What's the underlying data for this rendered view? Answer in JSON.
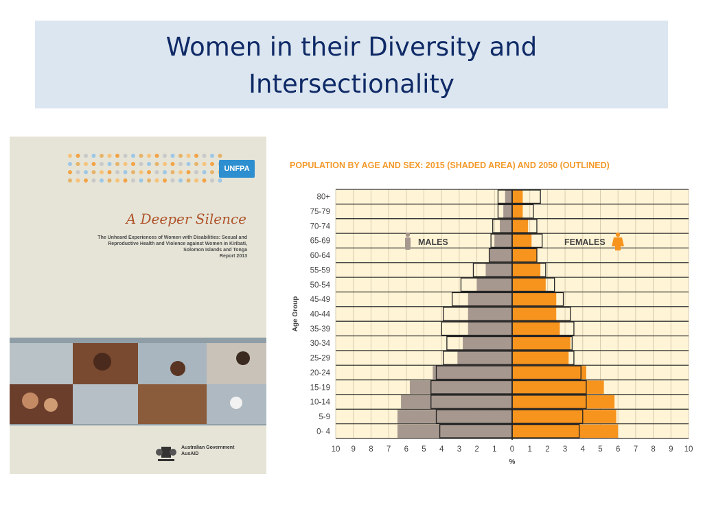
{
  "slide": {
    "title_line1": "Women in their Diversity and",
    "title_line2": "Intersectionality"
  },
  "cover": {
    "title": "A Deeper Silence",
    "brand_label": "UNFPA",
    "subtitle": "The Unheard Experiences of Women with Disabilities: Sexual and Reproductive Health and Violence against Women in Kiribati, Solomon Islands and Tonga",
    "subtitle_line2": "Kiribati, Solomon Islands and Tonga",
    "year": "Report 2013",
    "logo_text_line1": "Australian Government",
    "logo_text_line2": "AusAID"
  },
  "chart_data": {
    "type": "bar",
    "orientation": "horizontal",
    "title": "POPULATION BY AGE AND SEX: 2015 (SHADED AREA) AND 2050 (OUTLINED)",
    "xlabel": "%",
    "ylabel": "Age Group",
    "xlim": [
      -10,
      10
    ],
    "x_ticks": [
      "10",
      "9",
      "8",
      "7",
      "6",
      "5",
      "4",
      "3",
      "2",
      "1",
      "0",
      "1",
      "2",
      "3",
      "4",
      "5",
      "6",
      "7",
      "8",
      "9",
      "10"
    ],
    "categories": [
      "0- 4",
      "5-9",
      "10-14",
      "15-19",
      "20-24",
      "25-29",
      "30-34",
      "35-39",
      "40-44",
      "45-49",
      "50-54",
      "55-59",
      "60-64",
      "65-69",
      "70-74",
      "75-79",
      "80+"
    ],
    "male_label": "MALES",
    "female_label": "FEMALES",
    "series": [
      {
        "name": "Males 2015",
        "style": "shaded",
        "color": "#a7988f",
        "values": [
          6.5,
          6.5,
          6.3,
          5.8,
          4.5,
          3.1,
          2.8,
          2.5,
          2.5,
          2.5,
          2.0,
          1.5,
          1.3,
          1.0,
          0.7,
          0.5,
          0.4
        ]
      },
      {
        "name": "Males 2050",
        "style": "outlined",
        "values": [
          4.1,
          4.3,
          4.6,
          4.6,
          4.3,
          3.9,
          3.7,
          4.0,
          3.9,
          3.4,
          2.9,
          2.2,
          1.3,
          1.2,
          1.1,
          0.8,
          0.8
        ]
      },
      {
        "name": "Females 2015",
        "style": "shaded",
        "color": "#f7941e",
        "values": [
          6.0,
          5.9,
          5.8,
          5.2,
          4.2,
          3.2,
          3.3,
          2.7,
          2.5,
          2.5,
          1.9,
          1.6,
          1.4,
          1.1,
          0.9,
          0.6,
          0.6
        ]
      },
      {
        "name": "Females 2050",
        "style": "outlined",
        "values": [
          3.8,
          4.0,
          4.2,
          4.2,
          3.9,
          3.5,
          3.4,
          3.5,
          3.3,
          2.9,
          2.4,
          1.9,
          1.4,
          1.7,
          1.4,
          1.2,
          1.6
        ]
      }
    ],
    "colors": {
      "background": "#fff4d5",
      "grid": "#333333",
      "male": "#a7988f",
      "female": "#f7941e",
      "title": "#f39a2b"
    }
  }
}
